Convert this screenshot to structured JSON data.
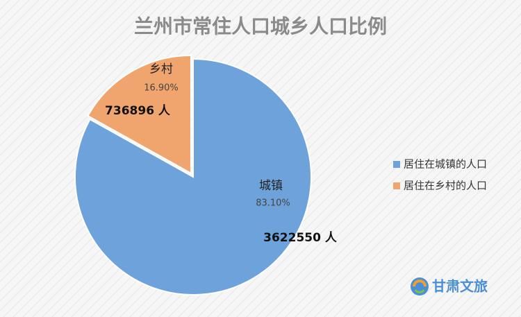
{
  "chart_data": {
    "type": "pie",
    "title": "兰州市常住人口城乡人口比例",
    "categories": [
      "城镇",
      "乡村"
    ],
    "values": [
      83.1,
      16.9
    ],
    "value_labels": [
      "83.10%",
      "16.90%"
    ],
    "counts": [
      3622550,
      736896
    ],
    "count_labels": [
      "3622550 人",
      "736896 人"
    ],
    "colors": [
      "#6ea2da",
      "#f0a56e"
    ],
    "legend": [
      "居住在城镇的人口",
      "居住在乡村的人口"
    ],
    "legend_position": "right"
  },
  "watermark": "甘肃文旅"
}
